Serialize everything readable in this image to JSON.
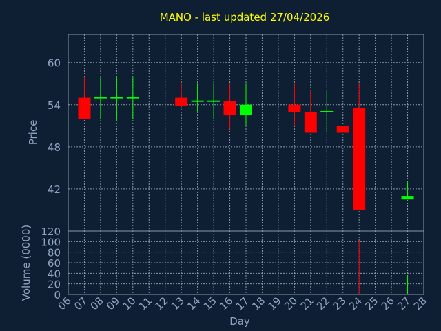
{
  "chart_data": {
    "title": "MANO - last updated 27/04/2026",
    "price_panel": {
      "type": "candlestick",
      "ylabel": "Price",
      "ylim": [
        36,
        64
      ],
      "yticks": [
        42,
        48,
        54,
        60
      ],
      "up_color": "#00ff00",
      "down_color": "#ff0000",
      "candles": [
        {
          "day": 7,
          "open": 55.0,
          "high": 58.0,
          "low": 52.0,
          "close": 52.0
        },
        {
          "day": 8,
          "open": 55.0,
          "high": 58.0,
          "low": 52.0,
          "close": 55.0
        },
        {
          "day": 9,
          "open": 55.0,
          "high": 58.0,
          "low": 51.8,
          "close": 55.0
        },
        {
          "day": 10,
          "open": 55.0,
          "high": 58.0,
          "low": 52.0,
          "close": 55.0
        },
        {
          "day": 13,
          "open": 55.0,
          "high": 57.0,
          "low": 53.5,
          "close": 53.8
        },
        {
          "day": 14,
          "open": 54.5,
          "high": 57.0,
          "low": 53.0,
          "close": 54.5
        },
        {
          "day": 15,
          "open": 54.5,
          "high": 57.0,
          "low": 52.0,
          "close": 54.5
        },
        {
          "day": 16,
          "open": 54.5,
          "high": 57.0,
          "low": 50.5,
          "close": 52.5
        },
        {
          "day": 17,
          "open": 52.5,
          "high": 57.0,
          "low": 51.0,
          "close": 54.0
        },
        {
          "day": 20,
          "open": 54.0,
          "high": 57.0,
          "low": 51.0,
          "close": 53.0
        },
        {
          "day": 21,
          "open": 53.0,
          "high": 56.0,
          "low": 50.0,
          "close": 50.0
        },
        {
          "day": 22,
          "open": 53.0,
          "high": 56.0,
          "low": 50.0,
          "close": 53.0
        },
        {
          "day": 23,
          "open": 51.0,
          "high": 51.0,
          "low": 50.0,
          "close": 50.0
        },
        {
          "day": 24,
          "open": 53.5,
          "high": 57.0,
          "low": 39.0,
          "close": 39.0
        },
        {
          "day": 27,
          "open": 40.5,
          "high": 43.0,
          "low": 40.5,
          "close": 41.0
        }
      ]
    },
    "volume_panel": {
      "type": "bar",
      "ylabel": "Volume (0000)",
      "ylim": [
        0,
        120
      ],
      "yticks": [
        0,
        20,
        40,
        60,
        80,
        100,
        120
      ],
      "bars": [
        {
          "day": 16,
          "volume": 1,
          "color": "#ff0000"
        },
        {
          "day": 20,
          "volume": 1,
          "color": "#ff0000"
        },
        {
          "day": 23,
          "volume": 1,
          "color": "#ff0000"
        },
        {
          "day": 24,
          "volume": 102,
          "color": "#ff0000"
        },
        {
          "day": 27,
          "volume": 36,
          "color": "#00ff00"
        }
      ]
    },
    "xaxis": {
      "xlabel": "Day",
      "range": [
        6,
        28
      ],
      "tick_labels": [
        "06",
        "07",
        "08",
        "09",
        "10",
        "11",
        "12",
        "13",
        "14",
        "15",
        "16",
        "17",
        "18",
        "19",
        "20",
        "21",
        "22",
        "23",
        "24",
        "25",
        "26",
        "27",
        "28"
      ]
    },
    "grid": true
  }
}
